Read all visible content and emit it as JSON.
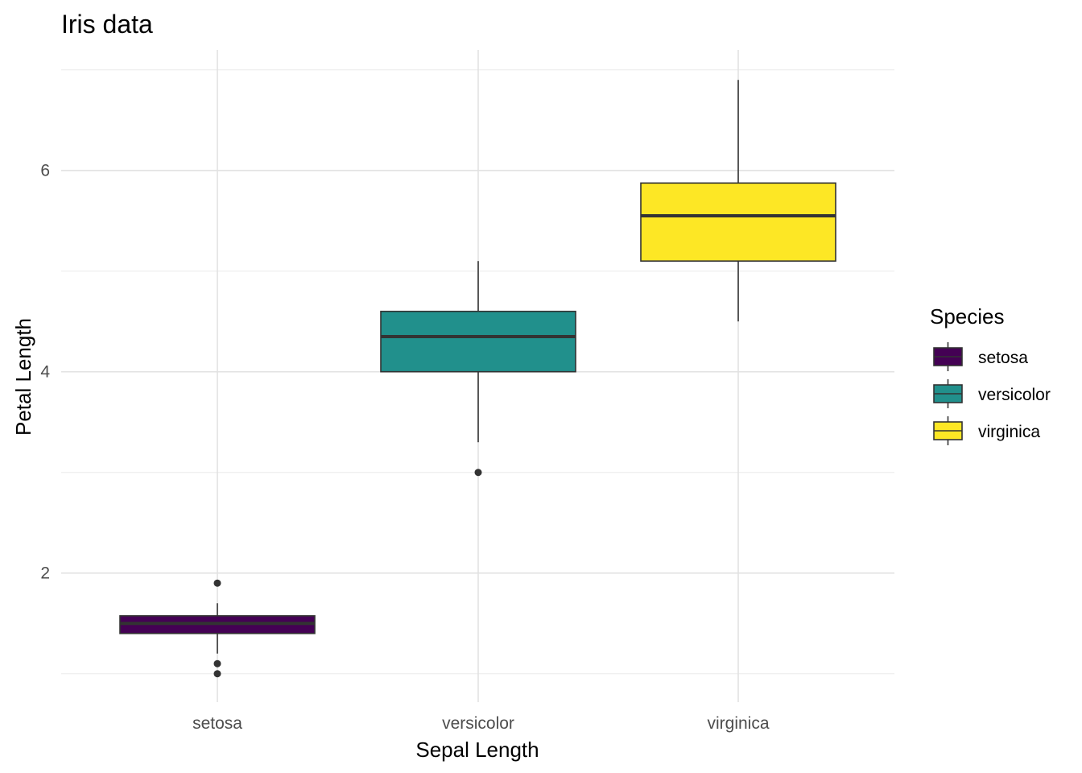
{
  "chart_data": {
    "type": "boxplot",
    "title": "Iris data",
    "xlabel": "Sepal Length",
    "ylabel": "Petal Length",
    "ylim": [
      0.9,
      7.05
    ],
    "y_ticks": [
      2,
      4,
      6
    ],
    "grid": true,
    "legend_placement": "right",
    "legend_title": "Species",
    "categories": [
      "setosa",
      "versicolor",
      "virginica"
    ],
    "series": [
      {
        "name": "setosa",
        "color": "#440154",
        "whisker_low": 1.2,
        "q1": 1.4,
        "median": 1.5,
        "q3": 1.575,
        "whisker_high": 1.7,
        "outliers": [
          1.0,
          1.1,
          1.9
        ]
      },
      {
        "name": "versicolor",
        "color": "#21908C",
        "whisker_low": 3.3,
        "q1": 4.0,
        "median": 4.35,
        "q3": 4.6,
        "whisker_high": 5.1,
        "outliers": [
          3.0
        ]
      },
      {
        "name": "virginica",
        "color": "#FDE725",
        "whisker_low": 4.5,
        "q1": 5.1,
        "median": 5.55,
        "q3": 5.875,
        "whisker_high": 6.9,
        "outliers": []
      }
    ]
  }
}
